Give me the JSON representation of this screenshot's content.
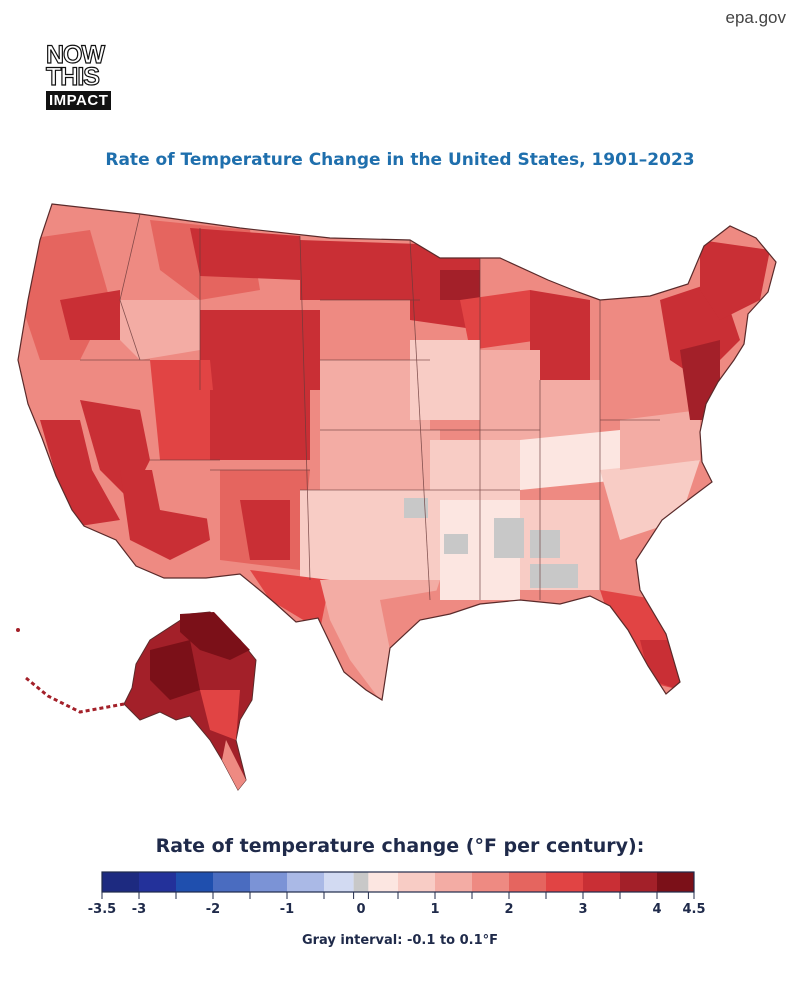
{
  "source_label": "epa.gov",
  "logo": {
    "line1": "NOW",
    "line2": "THIS",
    "line3": "IMPACT"
  },
  "map": {
    "title": "Rate of Temperature Change in the United States, 1901–2023"
  },
  "legend": {
    "title": "Rate of temperature change (°F per century):",
    "note": "Gray interval: -0.1 to 0.1°F",
    "ticks": [
      {
        "value": -3.5,
        "label": "-3.5"
      },
      {
        "value": -3,
        "label": "-3"
      },
      {
        "value": -2,
        "label": "-2"
      },
      {
        "value": -1,
        "label": "-1"
      },
      {
        "value": 0,
        "label": "0"
      },
      {
        "value": 1,
        "label": "1"
      },
      {
        "value": 2,
        "label": "2"
      },
      {
        "value": 3,
        "label": "3"
      },
      {
        "value": 4,
        "label": "4"
      },
      {
        "value": 4.5,
        "label": "4.5"
      }
    ],
    "bins": [
      {
        "from": -3.5,
        "to": -3.0,
        "color": "#1d2a80"
      },
      {
        "from": -3.0,
        "to": -2.5,
        "color": "#23319a"
      },
      {
        "from": -2.5,
        "to": -2.0,
        "color": "#1f4fae"
      },
      {
        "from": -2.0,
        "to": -1.5,
        "color": "#4a6cc0"
      },
      {
        "from": -1.5,
        "to": -1.0,
        "color": "#7b93d6"
      },
      {
        "from": -1.0,
        "to": -0.5,
        "color": "#aab9e6"
      },
      {
        "from": -0.5,
        "to": -0.1,
        "color": "#d2daf2"
      },
      {
        "from": -0.1,
        "to": 0.1,
        "color": "#c8c8c8"
      },
      {
        "from": 0.1,
        "to": 0.5,
        "color": "#fce6e1"
      },
      {
        "from": 0.5,
        "to": 1.0,
        "color": "#f8ccc5"
      },
      {
        "from": 1.0,
        "to": 1.5,
        "color": "#f3aca4"
      },
      {
        "from": 1.5,
        "to": 2.0,
        "color": "#ee8a82"
      },
      {
        "from": 2.0,
        "to": 2.5,
        "color": "#e5655f"
      },
      {
        "from": 2.5,
        "to": 3.0,
        "color": "#e14444"
      },
      {
        "from": 3.0,
        "to": 3.5,
        "color": "#c92f35"
      },
      {
        "from": 3.5,
        "to": 4.0,
        "color": "#a32029"
      },
      {
        "from": 4.0,
        "to": 4.5,
        "color": "#7b1018"
      }
    ]
  },
  "colors": {
    "title_blue": "#1f6fad",
    "legend_text": "#1f2a4a",
    "outline": "#5a2a2a"
  }
}
